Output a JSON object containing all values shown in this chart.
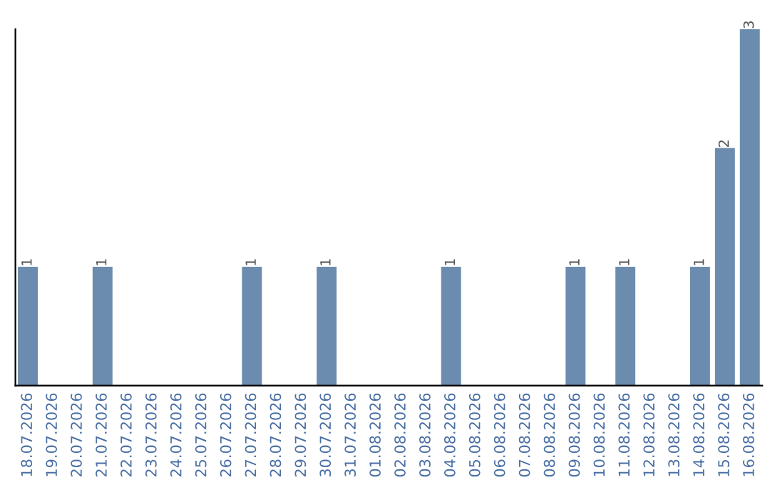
{
  "chart_data": {
    "type": "bar",
    "categories": [
      "18.07.2026",
      "19.07.2026",
      "20.07.2026",
      "21.07.2026",
      "22.07.2026",
      "23.07.2026",
      "24.07.2026",
      "25.07.2026",
      "26.07.2026",
      "27.07.2026",
      "28.07.2026",
      "29.07.2026",
      "30.07.2026",
      "31.07.2026",
      "01.08.2026",
      "02.08.2026",
      "03.08.2026",
      "04.08.2026",
      "05.08.2026",
      "06.08.2026",
      "07.08.2026",
      "08.08.2026",
      "09.08.2026",
      "10.08.2026",
      "11.08.2026",
      "12.08.2026",
      "13.08.2026",
      "14.08.2026",
      "15.08.2026",
      "16.08.2026"
    ],
    "values": [
      1,
      0,
      0,
      1,
      0,
      0,
      0,
      0,
      0,
      1,
      0,
      0,
      1,
      0,
      0,
      0,
      0,
      1,
      0,
      0,
      0,
      0,
      1,
      0,
      1,
      0,
      0,
      1,
      2,
      3
    ],
    "value_labels": [
      "1",
      null,
      null,
      "1",
      null,
      null,
      null,
      null,
      null,
      "1",
      null,
      null,
      "1",
      null,
      null,
      null,
      null,
      "1",
      null,
      null,
      null,
      null,
      "1",
      null,
      "1",
      null,
      null,
      "1",
      "2",
      "3"
    ],
    "color": "#6b8cae",
    "tick_labels": "x",
    "grid": false,
    "legend": false
  }
}
